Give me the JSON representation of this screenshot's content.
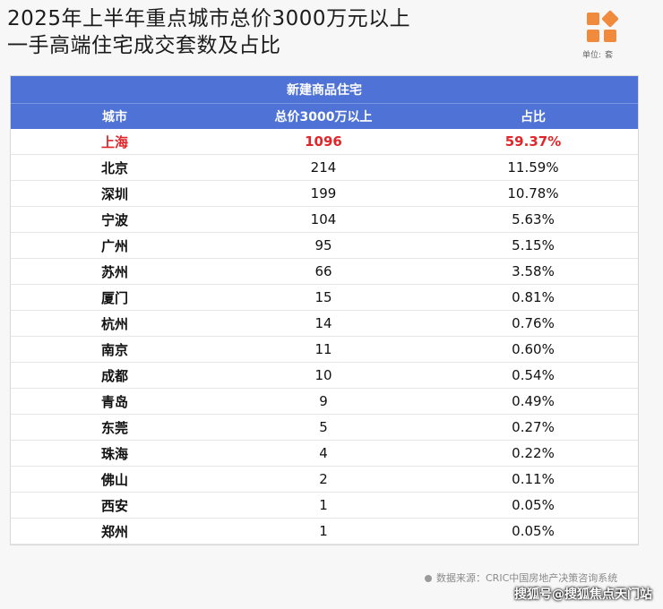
{
  "title_line1": "2025年上半年重点城市总价3000万元以上",
  "title_line2": "一手高端住宅成交套数及占比",
  "unit_label": "单位:",
  "unit_value": "套",
  "source": "数据来源：CRIC中国房地产决策咨询系统",
  "credit": "搜狐号@搜狐焦点天门站",
  "colors": {
    "header_bg": "#4e72d6",
    "highlight": "#e0262a",
    "logo": "#f08a3c"
  },
  "chart_data": {
    "type": "table",
    "group_header": "新建商品住宅",
    "columns": [
      "城市",
      "总价3000万以上",
      "占比"
    ],
    "rows": [
      {
        "city": "上海",
        "count": "1096",
        "share": "59.37%"
      },
      {
        "city": "北京",
        "count": "214",
        "share": "11.59%"
      },
      {
        "city": "深圳",
        "count": "199",
        "share": "10.78%"
      },
      {
        "city": "宁波",
        "count": "104",
        "share": "5.63%"
      },
      {
        "city": "广州",
        "count": "95",
        "share": "5.15%"
      },
      {
        "city": "苏州",
        "count": "66",
        "share": "3.58%"
      },
      {
        "city": "厦门",
        "count": "15",
        "share": "0.81%"
      },
      {
        "city": "杭州",
        "count": "14",
        "share": "0.76%"
      },
      {
        "city": "南京",
        "count": "11",
        "share": "0.60%"
      },
      {
        "city": "成都",
        "count": "10",
        "share": "0.54%"
      },
      {
        "city": "青岛",
        "count": "9",
        "share": "0.49%"
      },
      {
        "city": "东莞",
        "count": "5",
        "share": "0.27%"
      },
      {
        "city": "珠海",
        "count": "4",
        "share": "0.22%"
      },
      {
        "city": "佛山",
        "count": "2",
        "share": "0.11%"
      },
      {
        "city": "西安",
        "count": "1",
        "share": "0.05%"
      },
      {
        "city": "郑州",
        "count": "1",
        "share": "0.05%"
      }
    ]
  }
}
